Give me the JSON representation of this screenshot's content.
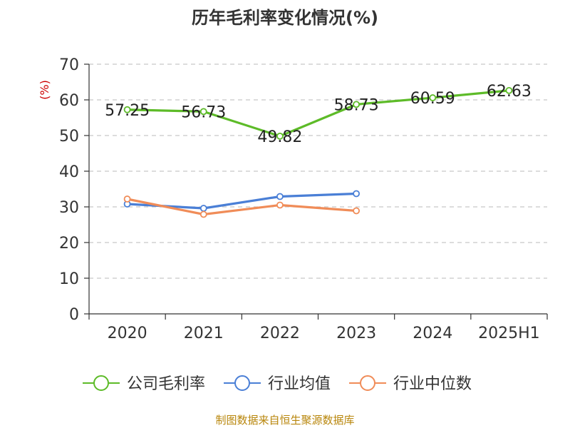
{
  "chart_data": {
    "type": "line",
    "title": "历年毛利率变化情况(%)",
    "ylabel": "(%)",
    "xlabel": "",
    "categories": [
      "2020",
      "2021",
      "2022",
      "2023",
      "2024",
      "2025H1"
    ],
    "ylim": [
      0,
      70
    ],
    "yticks": [
      0,
      10,
      20,
      30,
      40,
      50,
      60,
      70
    ],
    "grid": true,
    "legend_position": "bottom",
    "series": [
      {
        "name": "公司毛利率",
        "color": "#5dbb28",
        "labels_shown": true,
        "values": [
          57.25,
          56.73,
          49.82,
          58.73,
          60.59,
          62.63
        ]
      },
      {
        "name": "行业均值",
        "color": "#4a7fd6",
        "labels_shown": false,
        "values": [
          30.8,
          29.6,
          32.9,
          33.7,
          null,
          null
        ]
      },
      {
        "name": "行业中位数",
        "color": "#f08c58",
        "labels_shown": false,
        "values": [
          32.2,
          27.9,
          30.5,
          28.9,
          null,
          null
        ]
      }
    ]
  },
  "source": "制图数据来自恒生聚源数据库"
}
